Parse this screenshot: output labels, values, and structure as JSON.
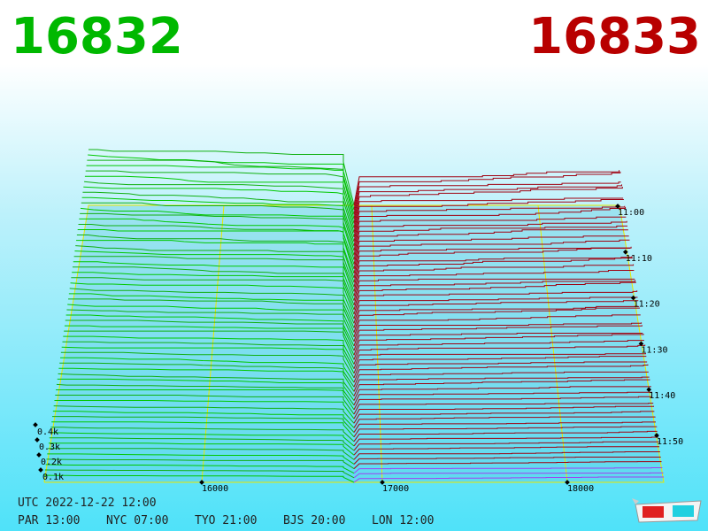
{
  "header": {
    "bid": "16832",
    "ask": "16833"
  },
  "price_axis": [
    "16000",
    "17000",
    "18000"
  ],
  "time_axis": [
    "11:00",
    "11:10",
    "11:20",
    "11:30",
    "11:40",
    "11:50"
  ],
  "depth_axis": [
    "0.4k",
    "0.3k",
    "0.2k",
    "0.1k"
  ],
  "footer": {
    "utc": "UTC 2022-12-22 12:00",
    "clocks": [
      "PAR 13:00",
      "NYC 07:00",
      "TYO 21:00",
      "BJS 20:00",
      "LON 12:00"
    ]
  }
}
